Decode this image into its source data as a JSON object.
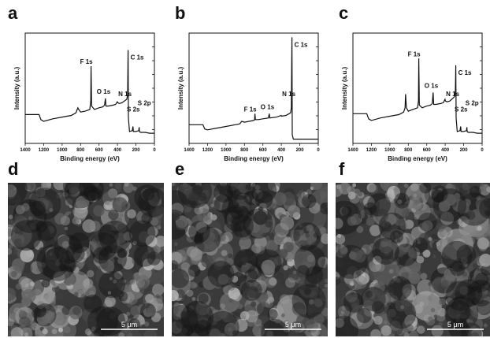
{
  "figure": {
    "panels": [
      {
        "letter": "a"
      },
      {
        "letter": "b"
      },
      {
        "letter": "c"
      },
      {
        "letter": "d"
      },
      {
        "letter": "e"
      },
      {
        "letter": "f"
      }
    ]
  },
  "chart_data": [
    {
      "type": "line",
      "panel": "a",
      "xlabel": "Binding energy (eV)",
      "ylabel": "Intensity (a.u.)",
      "xlim": [
        1400,
        0
      ],
      "x_ticks": [
        "1400",
        "1200",
        "1000",
        "800",
        "600",
        "400",
        "200",
        "0"
      ],
      "reversed_x": true,
      "series": [
        {
          "x": [
            1400,
            1300,
            1250,
            1230,
            1200,
            1100,
            1000,
            900,
            850,
            830,
            820,
            800,
            750,
            700,
            690,
            686,
            680,
            650,
            600,
            560,
            540,
            531,
            525,
            500,
            450,
            420,
            402,
            398,
            380,
            350,
            300,
            290,
            285,
            282,
            270,
            240,
            232,
            228,
            200,
            170,
            165,
            162,
            150,
            100,
            50,
            0
          ],
          "y": [
            0.34,
            0.34,
            0.34,
            0.28,
            0.26,
            0.29,
            0.31,
            0.33,
            0.36,
            0.42,
            0.4,
            0.37,
            0.38,
            0.4,
            0.5,
            0.91,
            0.44,
            0.4,
            0.42,
            0.43,
            0.45,
            0.53,
            0.44,
            0.44,
            0.45,
            0.46,
            0.49,
            0.48,
            0.47,
            0.48,
            0.52,
            0.57,
            1.1,
            0.3,
            0.14,
            0.15,
            0.2,
            0.14,
            0.14,
            0.15,
            0.19,
            0.14,
            0.13,
            0.13,
            0.12,
            0.12
          ]
        }
      ],
      "annotations": [
        {
          "text": "F 1s",
          "x": 686
        },
        {
          "text": "O 1s",
          "x": 531
        },
        {
          "text": "N 1s",
          "x": 400
        },
        {
          "text": "C 1s",
          "x": 285
        },
        {
          "text": "S 2s",
          "x": 230
        },
        {
          "text": "S 2p",
          "x": 164
        }
      ]
    },
    {
      "type": "line",
      "panel": "b",
      "xlabel": "Binding energy (eV)",
      "ylabel": "Intensity (a.u.)",
      "xlim": [
        1400,
        0
      ],
      "x_ticks": [
        "1400",
        "1200",
        "1000",
        "800",
        "600",
        "400",
        "200",
        "0"
      ],
      "reversed_x": true,
      "series": [
        {
          "x": [
            1400,
            1300,
            1250,
            1230,
            1200,
            1100,
            1000,
            900,
            850,
            830,
            800,
            750,
            700,
            690,
            686,
            680,
            650,
            600,
            540,
            531,
            525,
            450,
            402,
            398,
            350,
            300,
            292,
            285,
            282,
            270,
            200,
            100,
            0
          ],
          "y": [
            0.22,
            0.22,
            0.22,
            0.17,
            0.16,
            0.18,
            0.2,
            0.22,
            0.23,
            0.26,
            0.25,
            0.26,
            0.27,
            0.28,
            0.35,
            0.28,
            0.28,
            0.29,
            0.3,
            0.35,
            0.3,
            0.31,
            0.33,
            0.32,
            0.33,
            0.36,
            0.42,
            1.25,
            0.1,
            0.05,
            0.05,
            0.05,
            0.05
          ]
        }
      ],
      "annotations": [
        {
          "text": "F 1s",
          "x": 686
        },
        {
          "text": "O 1s",
          "x": 531
        },
        {
          "text": "N 1s",
          "x": 400
        },
        {
          "text": "C 1s",
          "x": 285
        }
      ]
    },
    {
      "type": "line",
      "panel": "c",
      "xlabel": "Binding energy (eV)",
      "ylabel": "Intensity (a.u.)",
      "xlim": [
        1400,
        0
      ],
      "x_ticks": [
        "1400",
        "1200",
        "1000",
        "800",
        "600",
        "400",
        "200",
        "0"
      ],
      "reversed_x": true,
      "series": [
        {
          "x": [
            1400,
            1300,
            1250,
            1230,
            1200,
            1100,
            1000,
            900,
            850,
            835,
            830,
            820,
            800,
            750,
            700,
            690,
            686,
            680,
            650,
            600,
            560,
            540,
            531,
            525,
            500,
            450,
            420,
            402,
            398,
            380,
            350,
            300,
            290,
            285,
            282,
            270,
            240,
            232,
            228,
            200,
            170,
            165,
            162,
            150,
            100,
            50,
            0
          ],
          "y": [
            0.35,
            0.35,
            0.35,
            0.29,
            0.27,
            0.3,
            0.32,
            0.34,
            0.37,
            0.42,
            0.58,
            0.42,
            0.38,
            0.4,
            0.42,
            0.5,
            1.0,
            0.45,
            0.42,
            0.44,
            0.45,
            0.47,
            0.6,
            0.46,
            0.46,
            0.47,
            0.48,
            0.52,
            0.5,
            0.49,
            0.5,
            0.55,
            0.6,
            0.92,
            0.3,
            0.14,
            0.15,
            0.2,
            0.14,
            0.14,
            0.15,
            0.19,
            0.14,
            0.13,
            0.13,
            0.12,
            0.12
          ]
        }
      ],
      "annotations": [
        {
          "text": "F 1s",
          "x": 686
        },
        {
          "text": "O 1s",
          "x": 531
        },
        {
          "text": "N 1s",
          "x": 400
        },
        {
          "text": "C 1s",
          "x": 285
        },
        {
          "text": "S 2s",
          "x": 230
        },
        {
          "text": "S 2p",
          "x": 164
        }
      ]
    }
  ],
  "sem_images": [
    {
      "panel": "d",
      "scale_label": "5 μm",
      "tone": "#6e6e6e"
    },
    {
      "panel": "e",
      "scale_label": "5 μm",
      "tone": "#777777"
    },
    {
      "panel": "f",
      "scale_label": "5 μm",
      "tone": "#5f5f5f"
    }
  ]
}
